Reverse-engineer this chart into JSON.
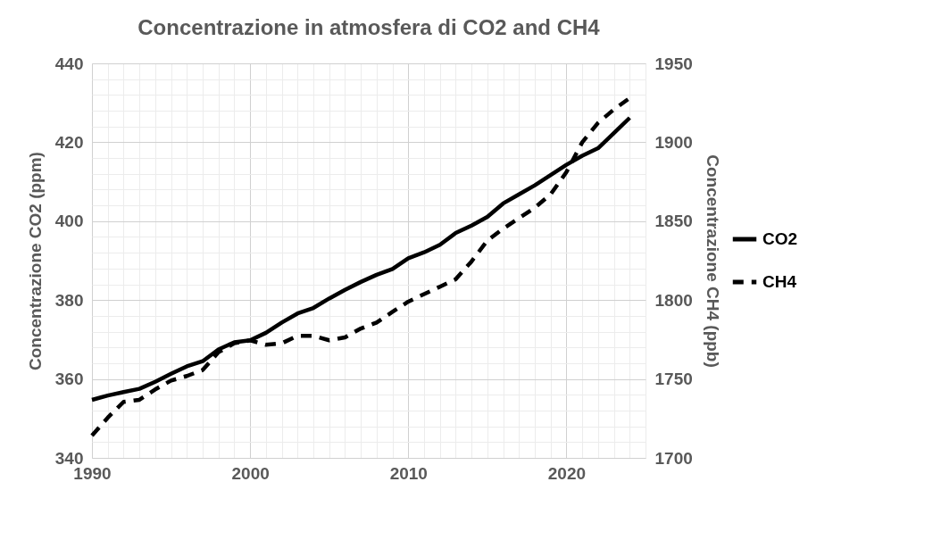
{
  "chart_data": {
    "type": "line",
    "title": "Concentrazione in atmosfera di CO2 and CH4",
    "x": [
      1990,
      1991,
      1992,
      1993,
      1994,
      1995,
      1996,
      1997,
      1998,
      1999,
      2000,
      2001,
      2002,
      2003,
      2004,
      2005,
      2006,
      2007,
      2008,
      2009,
      2010,
      2011,
      2012,
      2013,
      2014,
      2015,
      2016,
      2017,
      2018,
      2019,
      2020,
      2021,
      2022,
      2023,
      2024
    ],
    "series": [
      {
        "name": "CO2",
        "color": "#000000",
        "line_style": "solid",
        "values": [
          354.7,
          355.8,
          356.7,
          357.5,
          359.3,
          361.3,
          363.2,
          364.5,
          367.5,
          369.3,
          369.8,
          371.7,
          374.3,
          376.6,
          378.0,
          380.4,
          382.6,
          384.6,
          386.4,
          387.9,
          390.6,
          392.1,
          394.0,
          397.0,
          398.9,
          401.1,
          404.5,
          406.8,
          409.1,
          411.7,
          414.3,
          416.6,
          418.5,
          422.3,
          426.2
        ]
      },
      {
        "name": "CH4",
        "color": "#000000",
        "line_style": "dashed",
        "axis": "y2",
        "values": [
          1714.2,
          1725.5,
          1735.5,
          1736.8,
          1743.4,
          1749.0,
          1751.9,
          1755.7,
          1767.0,
          1772.6,
          1774.5,
          1771.7,
          1772.6,
          1777.4,
          1777.4,
          1774.5,
          1776.4,
          1782.0,
          1785.8,
          1792.5,
          1799.0,
          1803.8,
          1808.5,
          1813.2,
          1824.5,
          1837.7,
          1845.3,
          1851.9,
          1858.5,
          1867.0,
          1881.1,
          1900.0,
          1912.3,
          1920.8,
          1928.0
        ]
      }
    ],
    "ylabel": "Concentrazione CO2 (ppm)",
    "y2label": "Concentrazione CH4 (ppb)",
    "xlim": [
      1990,
      2025
    ],
    "xticks": [
      1990,
      {
        "value": 1991,
        "label": null
      },
      {
        "value": 1992,
        "label": null
      },
      {
        "value": 1993,
        "label": null
      },
      {
        "value": 1994,
        "label": null
      },
      {
        "value": 1995,
        "label": null
      },
      {
        "value": 1996,
        "label": null
      },
      {
        "value": 1997,
        "label": null
      },
      {
        "value": 1998,
        "label": null
      },
      {
        "value": 1999,
        "label": null
      },
      2000,
      {
        "value": 2001,
        "label": null
      },
      {
        "value": 2002,
        "label": null
      },
      {
        "value": 2003,
        "label": null
      },
      {
        "value": 2004,
        "label": null
      },
      {
        "value": 2005,
        "label": null
      },
      {
        "value": 2006,
        "label": null
      },
      {
        "value": 2007,
        "label": null
      },
      {
        "value": 2008,
        "label": null
      },
      {
        "value": 2009,
        "label": null
      },
      2010,
      {
        "value": 2011,
        "label": null
      },
      {
        "value": 2012,
        "label": null
      },
      {
        "value": 2013,
        "label": null
      },
      {
        "value": 2014,
        "label": null
      },
      {
        "value": 2015,
        "label": null
      },
      {
        "value": 2016,
        "label": null
      },
      {
        "value": 2017,
        "label": null
      },
      {
        "value": 2018,
        "label": null
      },
      {
        "value": 2019,
        "label": null
      },
      2020,
      {
        "value": 2021,
        "label": null
      },
      {
        "value": 2022,
        "label": null
      },
      {
        "value": 2023,
        "label": null
      },
      {
        "value": 2024,
        "label": null
      },
      {
        "value": 2025,
        "label": null
      }
    ],
    "ylim": [
      340,
      440
    ],
    "yticks": [
      340,
      {
        "value": 344,
        "label": null
      },
      {
        "value": 348,
        "label": null
      },
      {
        "value": 352,
        "label": null
      },
      {
        "value": 356,
        "label": null
      },
      360,
      {
        "value": 364,
        "label": null
      },
      {
        "value": 368,
        "label": null
      },
      {
        "value": 372,
        "label": null
      },
      {
        "value": 376,
        "label": null
      },
      380,
      {
        "value": 384,
        "label": null
      },
      {
        "value": 388,
        "label": null
      },
      {
        "value": 392,
        "label": null
      },
      {
        "value": 396,
        "label": null
      },
      400,
      {
        "value": 404,
        "label": null
      },
      {
        "value": 408,
        "label": null
      },
      {
        "value": 412,
        "label": null
      },
      {
        "value": 416,
        "label": null
      },
      420,
      {
        "value": 424,
        "label": null
      },
      {
        "value": 428,
        "label": null
      },
      {
        "value": 432,
        "label": null
      },
      {
        "value": 436,
        "label": null
      },
      440
    ],
    "y2lim": [
      1700,
      1950
    ],
    "y2ticks": [
      1700,
      1750,
      1800,
      1850,
      1900,
      1950
    ],
    "grid": true,
    "legend": "right",
    "marker": "none"
  }
}
